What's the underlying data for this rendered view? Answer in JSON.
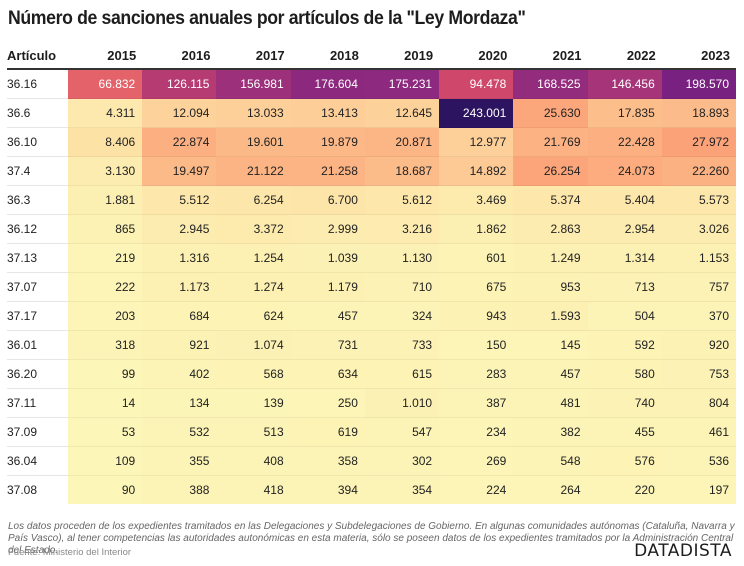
{
  "chart_data": {
    "type": "heatmap",
    "title": "Número de sanciones anuales por artículos de la \"Ley Mordaza\"",
    "row_header": "Artículo",
    "columns": [
      "2015",
      "2016",
      "2017",
      "2018",
      "2019",
      "2020",
      "2021",
      "2022",
      "2023"
    ],
    "rows": [
      {
        "label": "36.16",
        "values": [
          66832,
          126115,
          156981,
          176604,
          175231,
          94478,
          168525,
          146456,
          198570
        ]
      },
      {
        "label": "36.6",
        "values": [
          4311,
          12094,
          13033,
          13413,
          12645,
          243001,
          25630,
          17835,
          18893
        ]
      },
      {
        "label": "36.10",
        "values": [
          8406,
          22874,
          19601,
          19879,
          20871,
          12977,
          21769,
          22428,
          27972
        ]
      },
      {
        "label": "37.4",
        "values": [
          3130,
          19497,
          21122,
          21258,
          18687,
          14892,
          26254,
          24073,
          22260
        ]
      },
      {
        "label": "36.3",
        "values": [
          1881,
          5512,
          6254,
          6700,
          5612,
          3469,
          5374,
          5404,
          5573
        ]
      },
      {
        "label": "36.12",
        "values": [
          865,
          2945,
          3372,
          2999,
          3216,
          1862,
          2863,
          2954,
          3026
        ]
      },
      {
        "label": "37.13",
        "values": [
          219,
          1316,
          1254,
          1039,
          1130,
          601,
          1249,
          1314,
          1153
        ]
      },
      {
        "label": "37.07",
        "values": [
          222,
          1173,
          1274,
          1179,
          710,
          675,
          953,
          713,
          757
        ]
      },
      {
        "label": "37.17",
        "values": [
          203,
          684,
          624,
          457,
          324,
          943,
          1593,
          504,
          370
        ]
      },
      {
        "label": "36.01",
        "values": [
          318,
          921,
          1074,
          731,
          733,
          150,
          145,
          592,
          920
        ]
      },
      {
        "label": "36.20",
        "values": [
          99,
          402,
          568,
          634,
          615,
          283,
          457,
          580,
          753
        ]
      },
      {
        "label": "37.11",
        "values": [
          14,
          134,
          139,
          250,
          1010,
          387,
          481,
          740,
          804
        ]
      },
      {
        "label": "37.09",
        "values": [
          53,
          532,
          513,
          619,
          547,
          234,
          382,
          455,
          461
        ]
      },
      {
        "label": "36.04",
        "values": [
          109,
          355,
          408,
          358,
          302,
          269,
          548,
          576,
          536
        ]
      },
      {
        "label": "37.08",
        "values": [
          90,
          388,
          418,
          394,
          354,
          224,
          264,
          220,
          197
        ]
      }
    ],
    "number_format": "es (dot thousands separator)",
    "color_scale": {
      "name": "magma-reversed",
      "min": 0,
      "max": 243001,
      "stops": [
        "#fcf7b9",
        "#fde2a6",
        "#fca67a",
        "#f07d6c",
        "#dc4f69",
        "#c0406e",
        "#a0327a",
        "#7d2282",
        "#2c1460"
      ]
    }
  },
  "note": "Los datos proceden de los expedientes tramitados en las Delegaciones y Subdelegaciones de Gobierno. En algunas comunidades autónomas (Cataluña, Navarra y País Vasco), al tener competencias las autoridades autonómicas en esta materia, sólo se poseen datos de los expedientes tramitados por la Administración Central del Estado.",
  "source": "Fuente: Ministerio del Interior",
  "brand": "DATADISTA"
}
